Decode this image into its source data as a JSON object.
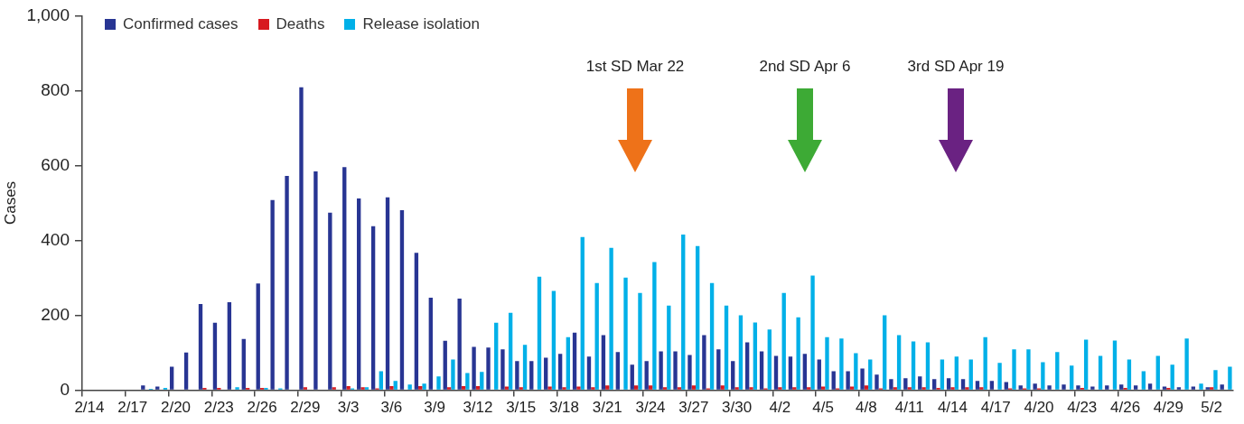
{
  "chart_data": {
    "type": "bar",
    "categories": [
      "2/14",
      null,
      null,
      "2/17",
      null,
      null,
      "2/20",
      null,
      null,
      "2/23",
      null,
      null,
      "2/26",
      null,
      null,
      "2/29",
      null,
      null,
      "3/3",
      null,
      null,
      "3/6",
      null,
      null,
      "3/9",
      null,
      null,
      "3/12",
      null,
      null,
      "3/15",
      null,
      null,
      "3/18",
      null,
      null,
      "3/21",
      null,
      null,
      "3/24",
      null,
      null,
      "3/27",
      null,
      null,
      "3/30",
      null,
      null,
      "4/2",
      null,
      null,
      "4/5",
      null,
      null,
      "4/8",
      null,
      null,
      "4/11",
      null,
      null,
      "4/14",
      null,
      null,
      "4/17",
      null,
      null,
      "4/20",
      null,
      null,
      "4/23",
      null,
      null,
      "4/26",
      null,
      null,
      "4/29",
      null,
      null,
      "5/2",
      null
    ],
    "series": [
      {
        "name": "Confirmed cases",
        "color": "#283593",
        "values": [
          0,
          0,
          0,
          0,
          13,
          10,
          63,
          101,
          230,
          180,
          235,
          137,
          285,
          508,
          572,
          809,
          584,
          474,
          596,
          512,
          438,
          515,
          481,
          367,
          247,
          132,
          245,
          116,
          114,
          109,
          78,
          78,
          87,
          97,
          154,
          90,
          147,
          102,
          68,
          78,
          104,
          104,
          94,
          147,
          109,
          78,
          128,
          104,
          92,
          90,
          97,
          82,
          51,
          51,
          58,
          42,
          30,
          32,
          37,
          30,
          32,
          30,
          25,
          25,
          22,
          13,
          18,
          13,
          15,
          13,
          10,
          13,
          15,
          13,
          18,
          10,
          8,
          10,
          8,
          15
        ]
      },
      {
        "name": "Deaths",
        "color": "#d7191f",
        "values": [
          0,
          0,
          0,
          0,
          0,
          0,
          0,
          0,
          6,
          6,
          0,
          6,
          6,
          0,
          0,
          8,
          0,
          8,
          11,
          8,
          5,
          11,
          0,
          11,
          0,
          8,
          11,
          11,
          0,
          10,
          8,
          0,
          10,
          8,
          10,
          8,
          13,
          0,
          13,
          13,
          8,
          8,
          13,
          5,
          13,
          8,
          8,
          5,
          8,
          8,
          8,
          10,
          5,
          10,
          13,
          5,
          8,
          8,
          8,
          6,
          8,
          8,
          8,
          0,
          5,
          5,
          5,
          0,
          0,
          6,
          0,
          0,
          6,
          0,
          0,
          6,
          0,
          0,
          8,
          0
        ]
      },
      {
        "name": "Release isolation",
        "color": "#00b0e8",
        "values": [
          0,
          0,
          0,
          0,
          4,
          6,
          0,
          0,
          0,
          0,
          8,
          0,
          6,
          5,
          0,
          0,
          0,
          0,
          5,
          8,
          51,
          25,
          15,
          18,
          37,
          82,
          46,
          49,
          180,
          207,
          121,
          303,
          265,
          142,
          409,
          286,
          380,
          301,
          260,
          342,
          226,
          416,
          385,
          286,
          226,
          200,
          181,
          162,
          260,
          195,
          306,
          142,
          138,
          99,
          82,
          200,
          147,
          130,
          128,
          82,
          90,
          82,
          142,
          73,
          109,
          109,
          75,
          102,
          66,
          135,
          92,
          133,
          82,
          51,
          92,
          68,
          138,
          18,
          54,
          63
        ]
      }
    ],
    "ylabel": "Cases",
    "ylim": [
      0,
      1000
    ],
    "yticks": [
      0,
      200,
      400,
      600,
      800,
      {
        "value": 1000,
        "label": "1,000"
      }
    ],
    "legend": "top left",
    "annotations": [
      "1st SD Mar 22",
      "2nd SD Apr 6",
      "3rd SD Apr 19"
    ]
  }
}
